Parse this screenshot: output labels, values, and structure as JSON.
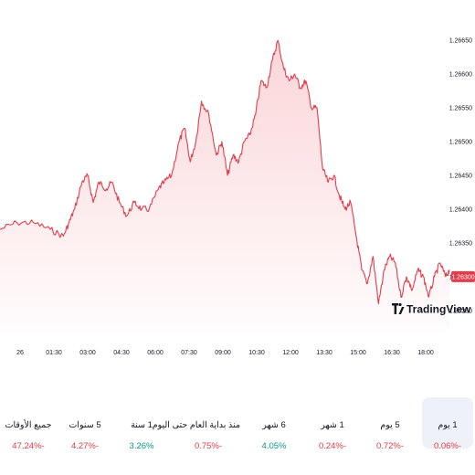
{
  "colors": {
    "line": "#e13d4b",
    "fill_top": "#f7b3ba",
    "negative": "#e03c47",
    "positive": "#089981",
    "active_bg": "#eef1f7"
  },
  "watermark": {
    "icon": "tradingview-logo-icon",
    "text": "TradingView"
  },
  "last_price_label": "1.26300",
  "chart_data": {
    "type": "area",
    "title": "",
    "xlabel": "",
    "ylabel": "",
    "ylim": [
      1.2622,
      1.2668
    ],
    "y_ticks": [
      "1.26650",
      "1.26600",
      "1.26550",
      "1.26500",
      "1.26450",
      "1.26400",
      "1.26350",
      "1.26300",
      "1.26250"
    ],
    "x_ticks": [
      "26",
      "01:30",
      "03:00",
      "04:30",
      "06:00",
      "07:30",
      "09:00",
      "10:30",
      "12:00",
      "13:30",
      "15:00",
      "16:30",
      "18:00"
    ],
    "grid": false,
    "series": [
      {
        "x": [
          "23:00",
          "23:45",
          "00:30",
          "01:15",
          "01:50",
          "02:05",
          "02:20",
          "02:40",
          "02:55",
          "03:10",
          "03:25",
          "03:45",
          "04:00",
          "04:20",
          "04:40",
          "05:00",
          "05:20",
          "05:40",
          "06:05",
          "06:20",
          "06:40",
          "07:00",
          "07:15",
          "07:30",
          "07:45",
          "08:00",
          "08:20",
          "08:40",
          "08:55",
          "09:10",
          "09:25",
          "09:40",
          "09:55",
          "10:10",
          "10:25",
          "10:40",
          "10:55",
          "11:10",
          "11:25",
          "11:40",
          "11:55",
          "12:10",
          "12:25",
          "12:40",
          "12:55",
          "13:10",
          "13:25",
          "13:40",
          "13:55",
          "14:10",
          "14:25",
          "14:40",
          "14:55",
          "15:10",
          "15:25",
          "15:40",
          "15:55",
          "16:10",
          "16:25",
          "16:40",
          "16:55",
          "17:10",
          "17:25",
          "17:40",
          "17:55",
          "18:10",
          "18:25",
          "18:40",
          "18:55",
          "19:05"
        ],
        "values": [
          1.2637,
          1.2638,
          1.2638,
          1.2637,
          1.2636,
          1.2638,
          1.264,
          1.2644,
          1.2645,
          1.2641,
          1.2644,
          1.2643,
          1.2644,
          1.2641,
          1.2639,
          1.2641,
          1.264,
          1.264,
          1.2643,
          1.2644,
          1.2645,
          1.265,
          1.2652,
          1.2647,
          1.265,
          1.2656,
          1.2654,
          1.2648,
          1.265,
          1.2645,
          1.2648,
          1.2647,
          1.265,
          1.2651,
          1.2654,
          1.2659,
          1.2658,
          1.2662,
          1.2665,
          1.2661,
          1.2659,
          1.266,
          1.2658,
          1.2659,
          1.2655,
          1.2655,
          1.2646,
          1.2644,
          1.2645,
          1.2642,
          1.264,
          1.2641,
          1.2636,
          1.2631,
          1.2629,
          1.2633,
          1.2626,
          1.2631,
          1.2633,
          1.2632,
          1.2627,
          1.263,
          1.2628,
          1.2631,
          1.263,
          1.2627,
          1.263,
          1.2632,
          1.263,
          1.2631
        ]
      }
    ]
  },
  "periods": [
    {
      "id": "1d",
      "label": "1 يوم",
      "value": "0.06%-",
      "tone": "negative",
      "active": true
    },
    {
      "id": "5d",
      "label": "5 يوم",
      "value": "0.72%-",
      "tone": "negative",
      "active": false
    },
    {
      "id": "1m",
      "label": "1 شهر",
      "value": "0.24%-",
      "tone": "negative",
      "active": false
    },
    {
      "id": "6m",
      "label": "6 شهر",
      "value": "4.05%",
      "tone": "positive",
      "active": false
    },
    {
      "id": "ytd",
      "label": "منذ بداية العام حتى اليوم",
      "value": "0.75%-",
      "tone": "negative",
      "active": false
    },
    {
      "id": "1y",
      "label": "1 سنة",
      "value": "3.26%",
      "tone": "positive",
      "active": false
    },
    {
      "id": "5y",
      "label": "5 سنوات",
      "value": "4.27%-",
      "tone": "negative",
      "active": false
    },
    {
      "id": "all",
      "label": "جميع الأوقات",
      "value": "47.24%-",
      "tone": "negative",
      "active": false
    }
  ]
}
